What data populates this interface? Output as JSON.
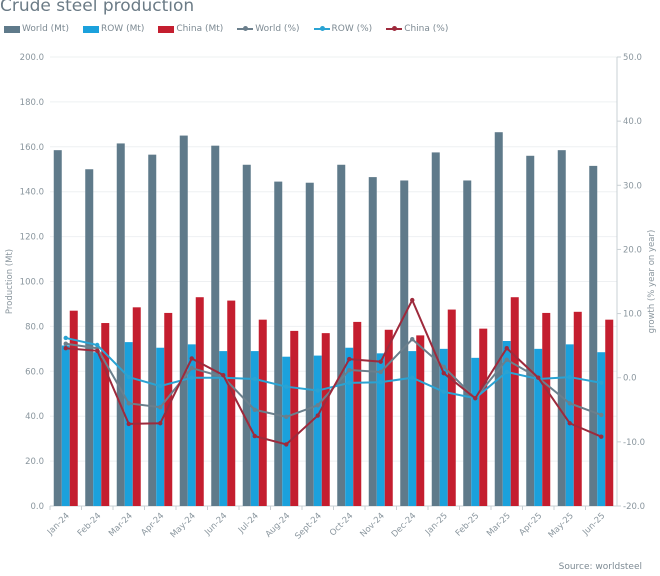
{
  "chart_data": {
    "type": "bar+line",
    "title": "Crude steel production",
    "categories": [
      "Jan-24",
      "Feb-24",
      "Mar-24",
      "Apr-24",
      "May-24",
      "Jun-24",
      "Jul-24",
      "Aug-24",
      "Sept-24",
      "Oct-24",
      "Nov-24",
      "Dec-24",
      "Jan-25",
      "Feb-25",
      "Mar-25",
      "Apr-25",
      "May-25",
      "Jun-25"
    ],
    "ylabel": "Production (Mt)",
    "y2label": "growth (% year on year)",
    "ylim": [
      0,
      200
    ],
    "y2lim": [
      -20,
      50
    ],
    "yticks": [
      "0.0",
      "20.0",
      "40.0",
      "60.0",
      "80.0",
      "100.0",
      "120.0",
      "140.0",
      "160.0",
      "180.0",
      "200.0"
    ],
    "y2ticks": [
      "-20.0",
      "-10.0",
      "0.0",
      "10.0",
      "20.0",
      "30.0",
      "40.0",
      "50.0"
    ],
    "grid": true,
    "legend": "top",
    "bar_series": [
      {
        "name": "World (Mt)",
        "color": "#5f7a8a",
        "values": [
          158.5,
          150,
          161.5,
          156.5,
          165,
          160.5,
          152,
          144.5,
          144,
          152,
          146.5,
          145,
          157.5,
          145,
          166.5,
          156,
          158.5,
          151.5
        ]
      },
      {
        "name": "ROW (Mt)",
        "color": "#1ba1dc",
        "values": [
          71.5,
          68.5,
          73,
          70.5,
          72,
          69,
          69,
          66.5,
          67,
          70.5,
          68,
          69,
          70,
          66,
          73.5,
          70,
          72,
          68.5
        ]
      },
      {
        "name": "China (Mt)",
        "color": "#c41e2f",
        "values": [
          87,
          81.5,
          88.5,
          86,
          93,
          91.5,
          83,
          78,
          77,
          82,
          78.5,
          76,
          87.5,
          79,
          93,
          86,
          86.5,
          83
        ]
      }
    ],
    "line_series": [
      {
        "name": "World (%)",
        "color": "#6b7f8c",
        "values": [
          5.3,
          4.6,
          -4.0,
          -4.6,
          1.5,
          0.1,
          -5.0,
          -6.1,
          -4.3,
          1.2,
          0.9,
          6.0,
          1.7,
          -3.2,
          2.8,
          0.0,
          -4.0,
          -5.8
        ]
      },
      {
        "name": "ROW (%)",
        "color": "#2aa3d3",
        "values": [
          6.2,
          5.1,
          0.1,
          -1.3,
          0.0,
          0.0,
          -0.2,
          -1.4,
          -2.0,
          -0.8,
          -0.7,
          0.0,
          -2.2,
          -3.2,
          0.9,
          -0.2,
          0.1,
          -0.8
        ]
      },
      {
        "name": "China (%)",
        "color": "#9e2a3c",
        "values": [
          4.6,
          4.2,
          -7.2,
          -7.1,
          3.0,
          0.4,
          -9.1,
          -10.4,
          -5.9,
          2.9,
          2.5,
          12.1,
          0.7,
          -3.2,
          4.6,
          0.0,
          -7.1,
          -9.2
        ]
      }
    ]
  },
  "source": "Source: worldsteel"
}
